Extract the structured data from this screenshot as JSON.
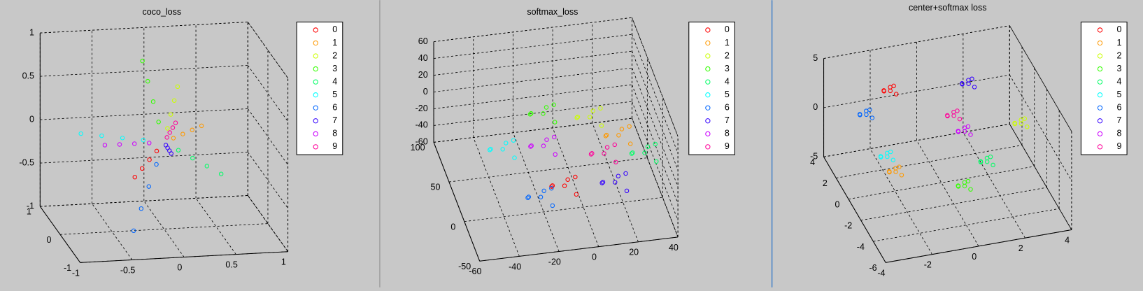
{
  "chart_data": [
    {
      "type": "scatter3d",
      "title": "coco_loss",
      "grid": true,
      "legend": "right",
      "xlim": [
        -1,
        1
      ],
      "ylim": [
        -1,
        1
      ],
      "zlim": [
        -1,
        1
      ],
      "xticks": [
        -1,
        -0.5,
        0,
        0.5,
        1
      ],
      "yticks": [
        -1,
        0,
        1
      ],
      "zticks": [
        -1,
        -0.5,
        0,
        0.5,
        1
      ],
      "series": [
        {
          "name": "0",
          "color": "#ff0000",
          "x": [
            -0.075,
            -0.15,
            -0.225,
            -0.3
          ],
          "y": [
            -0.025,
            -0.05,
            -0.075,
            -0.1
          ],
          "z": [
            -0.088,
            -0.175,
            -0.263,
            -0.35
          ]
        },
        {
          "name": "1",
          "color": "#ff9900",
          "x": [
            0.1,
            0.2,
            0.3,
            0.4
          ],
          "y": [
            0.05,
            0.1,
            0.15,
            0.2
          ],
          "z": [
            0.025,
            0.05,
            0.075,
            0.1
          ]
        },
        {
          "name": "2",
          "color": "#ccff00",
          "x": [
            0.038,
            0.075,
            0.113,
            0.15
          ],
          "y": [
            0.025,
            0.05,
            0.075,
            0.1
          ],
          "z": [
            0.15,
            0.3,
            0.45,
            0.6
          ]
        },
        {
          "name": "3",
          "color": "#33ff00",
          "x": [
            -0.038,
            -0.075,
            -0.113,
            -0.15
          ],
          "y": [
            0.075,
            0.15,
            0.225,
            0.3
          ],
          "z": [
            0.213,
            0.425,
            0.638,
            0.85
          ]
        },
        {
          "name": "4",
          "color": "#00ff66",
          "x": [
            0.138,
            0.275,
            0.413,
            0.55
          ],
          "y": [
            0,
            0,
            0,
            0
          ],
          "z": [
            -0.1,
            -0.2,
            -0.3,
            -0.4
          ]
        },
        {
          "name": "5",
          "color": "#00ffff",
          "x": [
            -0.2,
            -0.4,
            -0.6,
            -0.8
          ],
          "y": [
            0,
            0,
            0,
            0
          ],
          "z": [
            0.038,
            0.075,
            0.113,
            0.15
          ]
        },
        {
          "name": "6",
          "color": "#0066ff",
          "x": [
            -0.088,
            -0.175,
            -0.263,
            -0.35
          ],
          "y": [
            -0.075,
            -0.15,
            -0.225,
            -0.3
          ],
          "z": [
            -0.225,
            -0.45,
            -0.675,
            -0.9
          ]
        },
        {
          "name": "7",
          "color": "#3300ff",
          "x": [
            0.013,
            0.025,
            0.038,
            0.05
          ],
          "y": [
            -0.025,
            -0.05,
            -0.075,
            -0.1
          ],
          "z": [
            -0.025,
            -0.05,
            -0.075,
            -0.1
          ]
        },
        {
          "name": "8",
          "color": "#cc00ff",
          "x": [
            -0.138,
            -0.275,
            -0.413,
            -0.55
          ],
          "y": [
            0.025,
            0.05,
            0.075,
            0.1
          ],
          "z": [
            -0.008,
            -0.015,
            -0.023,
            -0.03
          ]
        },
        {
          "name": "9",
          "color": "#ff0099",
          "x": [
            0.038,
            0.075,
            0.113,
            0.15
          ],
          "y": [
            0.05,
            0.1,
            0.15,
            0.2
          ],
          "z": [
            0.038,
            0.075,
            0.113,
            0.15
          ]
        }
      ]
    },
    {
      "type": "scatter3d",
      "title": "softmax_loss",
      "grid": true,
      "legend": "right",
      "xlim": [
        -60,
        40
      ],
      "ylim": [
        -50,
        100
      ],
      "zlim": [
        -60,
        60
      ],
      "xticks": [
        -60,
        -40,
        -20,
        0,
        20,
        40
      ],
      "yticks": [
        -50,
        0,
        50,
        100
      ],
      "zticks": [
        -60,
        -40,
        -20,
        0,
        20,
        40,
        60
      ],
      "series": [
        {
          "name": "0",
          "color": "#ff0000",
          "x": [
            -11,
            -5,
            -18,
            -6,
            -16,
            -8
          ],
          "y": [
            -10,
            -6,
            -13,
            -16,
            -3,
            -1
          ],
          "z": [
            -22,
            -17,
            -18,
            -28,
            -27,
            -24
          ]
        },
        {
          "name": "1",
          "color": "#ff9900",
          "x": [
            24,
            30,
            17,
            29,
            19,
            27
          ],
          "y": [
            40,
            44,
            37,
            34,
            47,
            49
          ],
          "z": [
            -19,
            -14,
            -15,
            -25,
            -24,
            -21
          ]
        },
        {
          "name": "2",
          "color": "#ccff00",
          "x": [
            11,
            17,
            4,
            16,
            6,
            14
          ],
          "y": [
            50,
            54,
            47,
            44,
            57,
            59
          ],
          "z": [
            -3,
            2,
            1,
            -9,
            -8,
            -5
          ]
        },
        {
          "name": "3",
          "color": "#33ff00",
          "x": [
            -11,
            -5,
            -18,
            -6,
            -16,
            -8
          ],
          "y": [
            60,
            64,
            57,
            54,
            67,
            69
          ],
          "z": [
            -2,
            3,
            2,
            -8,
            -7,
            -4
          ]
        },
        {
          "name": "4",
          "color": "#00ff66",
          "x": [
            34,
            40,
            27,
            39,
            29,
            37
          ],
          "y": [
            20,
            24,
            17,
            14,
            27,
            29
          ],
          "z": [
            -24,
            -19,
            -20,
            -30,
            -29,
            -26
          ]
        },
        {
          "name": "5",
          "color": "#00ffff",
          "x": [
            -36,
            -30,
            -43,
            -31,
            -41,
            -33
          ],
          "y": [
            30,
            34,
            27,
            24,
            37,
            39
          ],
          "z": [
            -9,
            -4,
            -5,
            -15,
            -14,
            -11
          ]
        },
        {
          "name": "6",
          "color": "#0066ff",
          "x": [
            -23,
            -17,
            -30,
            -18,
            -28,
            -20
          ],
          "y": [
            -10,
            -6,
            -13,
            -16,
            -3,
            -1
          ],
          "z": [
            -32,
            -27,
            -28,
            -38,
            -37,
            -34
          ]
        },
        {
          "name": "7",
          "color": "#3300ff",
          "x": [
            16,
            22,
            9,
            21,
            11,
            19
          ],
          "y": [
            0,
            4,
            -3,
            -6,
            7,
            9
          ],
          "z": [
            -35,
            -30,
            -31,
            -41,
            -40,
            -37
          ]
        },
        {
          "name": "8",
          "color": "#cc00ff",
          "x": [
            -17,
            -11,
            -24,
            -12,
            -22,
            -14
          ],
          "y": [
            20,
            24,
            17,
            14,
            27,
            29
          ],
          "z": [
            -1,
            4,
            3,
            -7,
            -6,
            -3
          ]
        },
        {
          "name": "9",
          "color": "#ff0099",
          "x": [
            12,
            18,
            5,
            17,
            7,
            15
          ],
          "y": [
            10,
            14,
            7,
            4,
            17,
            19
          ],
          "z": [
            -9,
            -4,
            -5,
            -15,
            -14,
            -11
          ]
        }
      ]
    },
    {
      "type": "scatter3d",
      "title": "center+softmax loss",
      "grid": true,
      "legend": "right",
      "xlim": [
        -4,
        4
      ],
      "ylim": [
        -6,
        4
      ],
      "zlim": [
        -5,
        5
      ],
      "xticks": [
        -4,
        -2,
        0,
        2,
        4
      ],
      "yticks": [
        -6,
        -4,
        -2,
        0,
        2,
        4
      ],
      "zticks": [
        -5,
        0,
        5
      ],
      "series": [
        {
          "name": "0",
          "color": "#ff0000",
          "x": [
            -1.4,
            -1.2,
            -1.7,
            -1.2,
            -1.6,
            -1.3
          ],
          "y": [
            3,
            3.2,
            2.9,
            2.8,
            3.3,
            3.4
          ],
          "z": [
            1.7,
            1.9,
            1.9,
            1.5,
            1.5,
            1.6
          ]
        },
        {
          "name": "1",
          "color": "#ff9900",
          "x": [
            -2.5,
            -2.3,
            -2.8,
            -2.3,
            -2.7,
            -2.4
          ],
          "y": [
            -2,
            -1.8,
            -2.1,
            -2.2,
            -1.7,
            -1.6
          ],
          "z": [
            -0.7,
            -0.5,
            -0.5,
            -0.9,
            -0.9,
            -0.8
          ]
        },
        {
          "name": "2",
          "color": "#ccff00",
          "x": [
            3.7,
            3.9,
            3.4,
            3.9,
            3.5,
            3.8
          ],
          "y": [
            1,
            1.2,
            0.9,
            0.8,
            1.3,
            1.4
          ],
          "z": [
            -1.6,
            -1.4,
            -1.4,
            -1.8,
            -1.8,
            -1.7
          ]
        },
        {
          "name": "3",
          "color": "#33ff00",
          "x": [
            0.2,
            0.4,
            -0.1,
            0.4,
            0,
            0.3
          ],
          "y": [
            -3,
            -2.8,
            -3.1,
            -3.2,
            -2.7,
            -2.6
          ],
          "z": [
            -2.2,
            -2,
            -2,
            -2.4,
            -2.4,
            -2.3
          ]
        },
        {
          "name": "4",
          "color": "#00ff66",
          "x": [
            1.7,
            1.9,
            1.4,
            1.9,
            1.5,
            1.8
          ],
          "y": [
            -1,
            -0.8,
            -1.1,
            -1.2,
            -0.7,
            -0.6
          ],
          "z": [
            -2.5,
            -2.3,
            -2.3,
            -2.7,
            -2.7,
            -2.6
          ]
        },
        {
          "name": "5",
          "color": "#00ffff",
          "x": [
            -2.6,
            -2.4,
            -2.9,
            -2.4,
            -2.8,
            -2.5
          ],
          "y": [
            -1,
            -0.8,
            -1.1,
            -1.2,
            -0.7,
            -0.6
          ],
          "z": [
            -0.2,
            0,
            0,
            -0.4,
            -0.4,
            -0.3
          ]
        },
        {
          "name": "6",
          "color": "#0066ff",
          "x": [
            -2.7,
            -2.5,
            -3,
            -2.5,
            -2.9,
            -2.6
          ],
          "y": [
            2,
            2.2,
            1.9,
            1.8,
            2.3,
            2.4
          ],
          "z": [
            0.9,
            1.1,
            1.1,
            0.7,
            0.7,
            0.8
          ]
        },
        {
          "name": "7",
          "color": "#3300ff",
          "x": [
            1.7,
            1.9,
            1.4,
            1.9,
            1.5,
            1.8
          ],
          "y": [
            2,
            2.2,
            1.9,
            1.8,
            2.3,
            2.4
          ],
          "z": [
            2.2,
            2.4,
            2.4,
            2,
            2,
            2.1
          ]
        },
        {
          "name": "8",
          "color": "#cc00ff",
          "x": [
            1,
            1.2,
            0.7,
            1.2,
            0.8,
            1.1
          ],
          "y": [
            0,
            0.2,
            -0.1,
            -0.2,
            0.3,
            0.4
          ],
          "z": [
            -0.2,
            0,
            0,
            -0.4,
            -0.4,
            -0.3
          ]
        },
        {
          "name": "9",
          "color": "#ff0099",
          "x": [
            0.8,
            1,
            0.5,
            1,
            0.6,
            0.9
          ],
          "y": [
            1,
            1.2,
            0.9,
            0.8,
            1.3,
            1.4
          ],
          "z": [
            0.4,
            0.6,
            0.6,
            0.2,
            0.2,
            0.3
          ]
        }
      ]
    }
  ]
}
